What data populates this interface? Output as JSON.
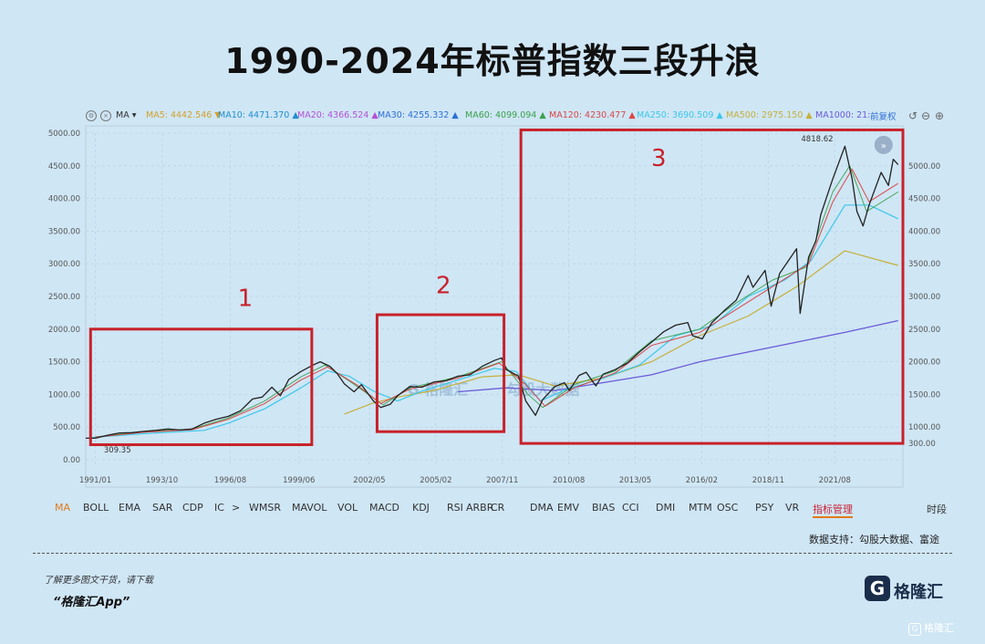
{
  "title": "1990-2024年标普指数三段升浪",
  "toolbar": {
    "ma_label": "MA",
    "ma_values": [
      {
        "label": "MA5: 4442.546",
        "color": "#d4a12a",
        "arrow": "▼"
      },
      {
        "label": "MA10: 4471.370",
        "color": "#1f8fd1",
        "arrow": "▲"
      },
      {
        "label": "MA20: 4366.524",
        "color": "#b451d6",
        "arrow": "▲"
      },
      {
        "label": "MA30: 4255.332",
        "color": "#2d6fd6",
        "arrow": "▲"
      },
      {
        "label": "MA60: 4099.094",
        "color": "#3aa14a",
        "arrow": "▲"
      },
      {
        "label": "MA120: 4230.477",
        "color": "#d84848",
        "arrow": "▲"
      },
      {
        "label": "MA250: 3690.509",
        "color": "#3cc8e8",
        "arrow": "▲"
      },
      {
        "label": "MA500: 2975.150",
        "color": "#c5b03a",
        "arrow": "▲"
      },
      {
        "label": "MA1000: 21:",
        "color": "#6a5ad6",
        "arrow": ""
      }
    ],
    "adjust_label": "前复权"
  },
  "indicators": [
    "MA",
    "BOLL",
    "EMA",
    "SAR",
    "CDP",
    "IC",
    ">",
    "WMSR",
    "MAVOL",
    "VOL",
    "MACD",
    "KDJ",
    "RSI",
    "ARBR",
    "CR",
    "DMA",
    "EMV",
    "BIAS",
    "CCI",
    "DMI",
    "MTM",
    "OSC",
    "PSY",
    "VR",
    "指标管理",
    "时段"
  ],
  "source": "数据支持：勾股大数据、富途",
  "footer": {
    "note": "了解更多图文干货，请下载",
    "app": "“格隆汇App”",
    "logo_letter": "G",
    "logo_text": "格隆汇",
    "watermark": "格隆汇"
  },
  "chart_data": {
    "type": "line",
    "title": "1990-2024年标普指数三段升浪",
    "ylim": [
      0,
      5000
    ],
    "y_ticks": [
      "0.00",
      "500.00",
      "1000.00",
      "1500.00",
      "2000.00",
      "2500.00",
      "3000.00",
      "3500.00",
      "4000.00",
      "4500.00",
      "5000.00"
    ],
    "y_ticks_right": [
      "300.00",
      "1000.00",
      "1500.00",
      "2000.00",
      "2500.00",
      "3000.00",
      "3500.00",
      "4000.00",
      "4500.00",
      "5000.00"
    ],
    "x_ticks": [
      {
        "label": "1991/01",
        "t": 1991.0
      },
      {
        "label": "1993/10",
        "t": 1993.75
      },
      {
        "label": "1996/08",
        "t": 1996.58
      },
      {
        "label": "1999/06",
        "t": 1999.42
      },
      {
        "label": "2002/05",
        "t": 2002.33
      },
      {
        "label": "2005/02",
        "t": 2005.08
      },
      {
        "label": "2007/11",
        "t": 2007.83
      },
      {
        "label": "2010/08",
        "t": 2010.58
      },
      {
        "label": "2013/05",
        "t": 2013.33
      },
      {
        "label": "2016/02",
        "t": 2016.08
      },
      {
        "label": "2018/11",
        "t": 2018.83
      },
      {
        "label": "2021/08",
        "t": 2021.58
      }
    ],
    "xlim": [
      1990.6,
      2024.4
    ],
    "series": [
      {
        "id": "price",
        "color": "#222",
        "width": 1.3,
        "points": [
          [
            1990.6,
            330
          ],
          [
            1991.0,
            330
          ],
          [
            1991.5,
            375
          ],
          [
            1992.0,
            410
          ],
          [
            1992.5,
            415
          ],
          [
            1993.0,
            435
          ],
          [
            1993.5,
            450
          ],
          [
            1994.0,
            470
          ],
          [
            1994.5,
            455
          ],
          [
            1995.0,
            470
          ],
          [
            1995.5,
            560
          ],
          [
            1996.0,
            620
          ],
          [
            1996.5,
            665
          ],
          [
            1997.0,
            750
          ],
          [
            1997.5,
            930
          ],
          [
            1997.9,
            960
          ],
          [
            1998.3,
            1110
          ],
          [
            1998.65,
            980
          ],
          [
            1999.0,
            1230
          ],
          [
            1999.5,
            1350
          ],
          [
            2000.0,
            1450
          ],
          [
            2000.3,
            1500
          ],
          [
            2000.7,
            1430
          ],
          [
            2001.0,
            1320
          ],
          [
            2001.3,
            1160
          ],
          [
            2001.7,
            1040
          ],
          [
            2002.0,
            1150
          ],
          [
            2002.5,
            900
          ],
          [
            2002.8,
            800
          ],
          [
            2003.2,
            850
          ],
          [
            2003.5,
            980
          ],
          [
            2004.0,
            1120
          ],
          [
            2004.5,
            1110
          ],
          [
            2005.0,
            1190
          ],
          [
            2005.5,
            1210
          ],
          [
            2006.0,
            1280
          ],
          [
            2006.5,
            1300
          ],
          [
            2007.0,
            1430
          ],
          [
            2007.5,
            1520
          ],
          [
            2007.8,
            1560
          ],
          [
            2008.0,
            1380
          ],
          [
            2008.5,
            1280
          ],
          [
            2008.8,
            900
          ],
          [
            2009.2,
            680
          ],
          [
            2009.5,
            920
          ],
          [
            2010.0,
            1120
          ],
          [
            2010.4,
            1180
          ],
          [
            2010.6,
            1060
          ],
          [
            2011.0,
            1290
          ],
          [
            2011.3,
            1340
          ],
          [
            2011.7,
            1130
          ],
          [
            2012.0,
            1310
          ],
          [
            2012.5,
            1380
          ],
          [
            2013.0,
            1480
          ],
          [
            2013.5,
            1650
          ],
          [
            2014.0,
            1800
          ],
          [
            2014.5,
            1960
          ],
          [
            2015.0,
            2060
          ],
          [
            2015.5,
            2100
          ],
          [
            2015.7,
            1900
          ],
          [
            2016.1,
            1850
          ],
          [
            2016.5,
            2100
          ],
          [
            2017.0,
            2280
          ],
          [
            2017.5,
            2440
          ],
          [
            2018.0,
            2820
          ],
          [
            2018.2,
            2640
          ],
          [
            2018.7,
            2900
          ],
          [
            2018.95,
            2350
          ],
          [
            2019.3,
            2850
          ],
          [
            2019.5,
            2960
          ],
          [
            2020.0,
            3230
          ],
          [
            2020.15,
            2240
          ],
          [
            2020.5,
            3100
          ],
          [
            2020.8,
            3350
          ],
          [
            2021.0,
            3750
          ],
          [
            2021.5,
            4300
          ],
          [
            2022.0,
            4800
          ],
          [
            2022.3,
            4300
          ],
          [
            2022.5,
            3800
          ],
          [
            2022.75,
            3580
          ],
          [
            2023.0,
            3900
          ],
          [
            2023.5,
            4400
          ],
          [
            2023.8,
            4200
          ],
          [
            2024.0,
            4600
          ],
          [
            2024.2,
            4520
          ]
        ]
      },
      {
        "id": "ma250",
        "color": "#3cc8e8",
        "width": 1.2,
        "points": [
          [
            1990.8,
            340
          ],
          [
            1993,
            400
          ],
          [
            1995.5,
            450
          ],
          [
            1996.5,
            560
          ],
          [
            1998,
            780
          ],
          [
            1999.5,
            1100
          ],
          [
            2000.6,
            1360
          ],
          [
            2001.5,
            1280
          ],
          [
            2002.5,
            1050
          ],
          [
            2003.5,
            900
          ],
          [
            2004.5,
            1050
          ],
          [
            2006,
            1220
          ],
          [
            2007.5,
            1400
          ],
          [
            2008.4,
            1350
          ],
          [
            2009.4,
            900
          ],
          [
            2010.5,
            1080
          ],
          [
            2012,
            1250
          ],
          [
            2013.5,
            1450
          ],
          [
            2015,
            1900
          ],
          [
            2016.5,
            2050
          ],
          [
            2018,
            2500
          ],
          [
            2019.5,
            2750
          ],
          [
            2020.6,
            3050
          ],
          [
            2022,
            3900
          ],
          [
            2023,
            3900
          ],
          [
            2024.2,
            3690
          ]
        ]
      },
      {
        "id": "ma500",
        "color": "#c5b03a",
        "width": 1.2,
        "points": [
          [
            2001.3,
            700
          ],
          [
            2002.5,
            870
          ],
          [
            2003.5,
            960
          ],
          [
            2005,
            1060
          ],
          [
            2007,
            1270
          ],
          [
            2008.5,
            1300
          ],
          [
            2010,
            1130
          ],
          [
            2012,
            1250
          ],
          [
            2014,
            1500
          ],
          [
            2016,
            1900
          ],
          [
            2018,
            2200
          ],
          [
            2020,
            2650
          ],
          [
            2022,
            3200
          ],
          [
            2024.2,
            2975
          ]
        ]
      },
      {
        "id": "ma1000",
        "color": "#6a5ad6",
        "width": 1.3,
        "points": [
          [
            2006,
            1040
          ],
          [
            2008,
            1100
          ],
          [
            2010,
            1060
          ],
          [
            2012,
            1180
          ],
          [
            2014,
            1300
          ],
          [
            2016,
            1500
          ],
          [
            2018,
            1650
          ],
          [
            2020,
            1800
          ],
          [
            2022,
            1950
          ],
          [
            2024.2,
            2130
          ]
        ]
      },
      {
        "id": "ma120",
        "color": "#d84848",
        "width": 1.0,
        "points": [
          [
            1991,
            345
          ],
          [
            1993,
            420
          ],
          [
            1995,
            460
          ],
          [
            1996.5,
            620
          ],
          [
            1998,
            860
          ],
          [
            1999.5,
            1220
          ],
          [
            2000.6,
            1420
          ],
          [
            2001.8,
            1150
          ],
          [
            2002.8,
            860
          ],
          [
            2004,
            1080
          ],
          [
            2006,
            1250
          ],
          [
            2007.7,
            1480
          ],
          [
            2008.8,
            1150
          ],
          [
            2009.6,
            820
          ],
          [
            2010.8,
            1100
          ],
          [
            2012.5,
            1330
          ],
          [
            2014,
            1750
          ],
          [
            2016,
            1950
          ],
          [
            2017.5,
            2300
          ],
          [
            2019,
            2650
          ],
          [
            2020.5,
            3000
          ],
          [
            2021.5,
            3950
          ],
          [
            2022.3,
            4450
          ],
          [
            2023,
            3950
          ],
          [
            2024.2,
            4230
          ]
        ]
      },
      {
        "id": "ma60",
        "color": "#3aa14a",
        "width": 0.9,
        "points": [
          [
            1991,
            350
          ],
          [
            1993,
            430
          ],
          [
            1995,
            470
          ],
          [
            1996.5,
            640
          ],
          [
            1998,
            900
          ],
          [
            1999.5,
            1270
          ],
          [
            2000.5,
            1450
          ],
          [
            2001.6,
            1180
          ],
          [
            2002.9,
            840
          ],
          [
            2004,
            1100
          ],
          [
            2006,
            1270
          ],
          [
            2007.8,
            1500
          ],
          [
            2008.9,
            1000
          ],
          [
            2009.5,
            800
          ],
          [
            2010.8,
            1150
          ],
          [
            2012.5,
            1360
          ],
          [
            2014,
            1820
          ],
          [
            2016,
            2000
          ],
          [
            2017.5,
            2400
          ],
          [
            2019,
            2750
          ],
          [
            2020.4,
            2950
          ],
          [
            2021.5,
            4100
          ],
          [
            2022.2,
            4500
          ],
          [
            2022.9,
            3800
          ],
          [
            2024.2,
            4100
          ]
        ]
      }
    ],
    "annotations": [
      {
        "label": "309.35",
        "t": 1991.35,
        "v": 309.35
      },
      {
        "label": "4818.62",
        "t": 2022.0,
        "v": 4818.62
      }
    ],
    "highlight_boxes": [
      {
        "label": "1",
        "t0": 1990.8,
        "t1": 1999.95,
        "v0": 230,
        "v1": 2000
      },
      {
        "label": "2",
        "t0": 2002.65,
        "t1": 2007.9,
        "v0": 430,
        "v1": 2220
      },
      {
        "label": "3",
        "t0": 2008.6,
        "t1": 2024.4,
        "v0": 250,
        "v1": 5050
      }
    ]
  }
}
